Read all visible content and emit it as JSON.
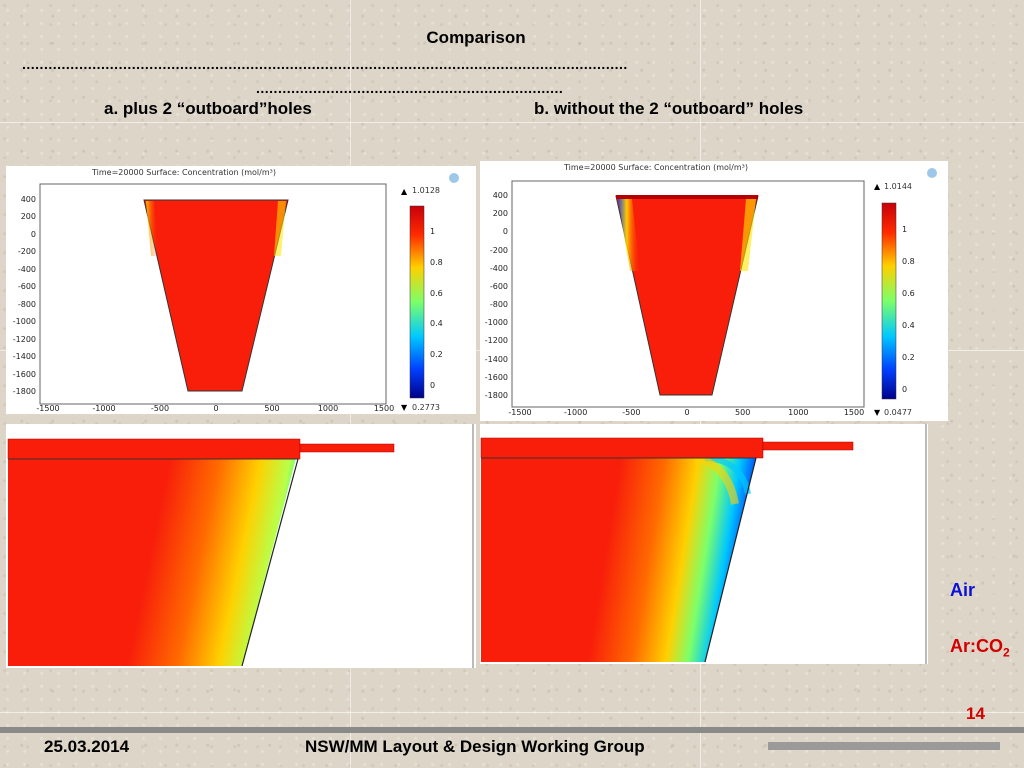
{
  "slide": {
    "title": "Comparison",
    "dots_line_1": "..........................................................................................................................................",
    "dots_line_2": "......................................................................",
    "label_a": "a.  plus 2 “outboard”holes",
    "label_b": "b. without the 2 “outboard” holes"
  },
  "panel_a": {
    "header": "Time=20000   Surface: Concentration (mol/m³)",
    "max": "1.0128",
    "min": "0.2773",
    "y_ticks": [
      "400",
      "200",
      "0",
      "-200",
      "-400",
      "-600",
      "-800",
      "-1000",
      "-1200",
      "-1400",
      "-1600",
      "-1800"
    ],
    "x_ticks": [
      "-1500",
      "-1000",
      "-500",
      "0",
      "500",
      "1000",
      "1500"
    ],
    "cbar_ticks": [
      "1",
      "0.8",
      "0.6",
      "0.4",
      "0.2",
      "0"
    ]
  },
  "panel_b": {
    "header": "Time=20000   Surface: Concentration (mol/m³)",
    "max": "1.0144",
    "min": "0.0477",
    "y_ticks": [
      "400",
      "200",
      "0",
      "-200",
      "-400",
      "-600",
      "-800",
      "-1000",
      "-1200",
      "-1400",
      "-1600",
      "-1800"
    ],
    "x_ticks": [
      "-1500",
      "-1000",
      "-500",
      "0",
      "500",
      "1000",
      "1500"
    ],
    "cbar_ticks": [
      "1",
      "0.8",
      "0.6",
      "0.4",
      "0.2",
      "0"
    ]
  },
  "legend": {
    "air": "Air",
    "arco2_main": "Ar:CO",
    "arco2_sub": "2",
    "air_color": "#0b12d6",
    "arco2_color": "#d40000"
  },
  "footer": {
    "date": "25.03.2014",
    "group": "NSW/MM  Layout & Design Working Group",
    "page": "14"
  }
}
